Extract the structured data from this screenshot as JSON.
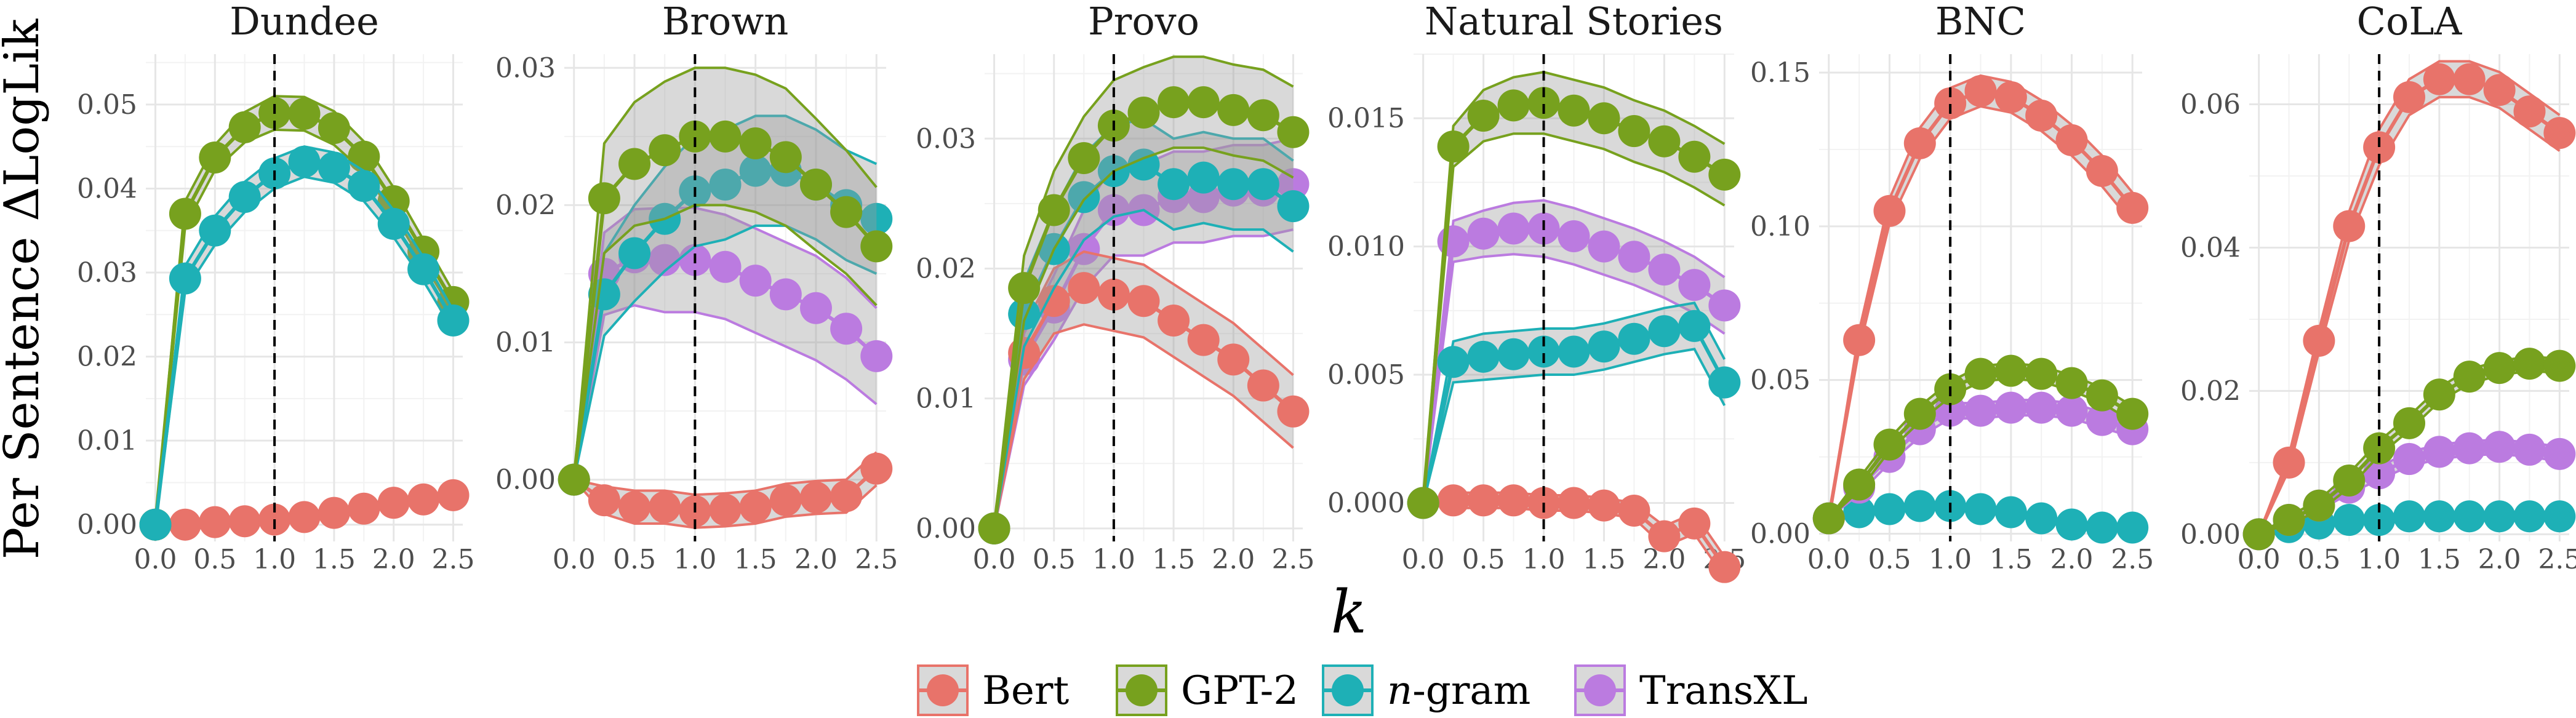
{
  "chart_data": {
    "type": "line",
    "ylabel": "Per Sentence ΔLogLik",
    "xlabel": "k",
    "x": [
      0.0,
      0.25,
      0.5,
      0.75,
      1.0,
      1.25,
      1.5,
      1.75,
      2.0,
      2.25,
      2.5
    ],
    "x_ticks": [
      0.0,
      0.5,
      1.0,
      1.5,
      2.0,
      2.5
    ],
    "x_tick_labels": [
      "0.0",
      "0.5",
      "1.0",
      "1.5",
      "2.0",
      "2.5"
    ],
    "vline_x": 1.0,
    "colors": {
      "Bert": "#E8736A",
      "GPT-2": "#77A11E",
      "n-gram": "#1EB0B6",
      "TransXL": "#BB7BE0"
    },
    "legend": [
      {
        "name": "Bert",
        "label_plain": "Bert",
        "label_suffix": "",
        "color": "#E8736A"
      },
      {
        "name": "GPT-2",
        "label_plain": "GPT-2",
        "label_suffix": "",
        "color": "#77A11E"
      },
      {
        "name": "n-gram",
        "label_plain": "",
        "label_italic": "n",
        "label_suffix": "-gram",
        "color": "#1EB0B6"
      },
      {
        "name": "TransXL",
        "label_plain": "TransXL",
        "label_suffix": "",
        "color": "#BB7BE0"
      }
    ],
    "panels": [
      {
        "title": "Dundee",
        "ylim": [
          -0.002,
          0.056
        ],
        "y_ticks": [
          0.0,
          0.01,
          0.02,
          0.03,
          0.04,
          0.05
        ],
        "y_tick_labels": [
          "0.00",
          "0.01",
          "0.02",
          "0.03",
          "0.04",
          "0.05"
        ],
        "series": [
          {
            "name": "Bert",
            "values": [
              0.0,
              0.0,
              0.0003,
              0.0004,
              0.0006,
              0.0009,
              0.0014,
              0.0019,
              0.0026,
              0.003,
              0.0035
            ],
            "band": [
              0.0004,
              0.0004,
              0.0004,
              0.0004,
              0.0004,
              0.0004,
              0.0004,
              0.0004,
              0.0004,
              0.0004,
              0.0004
            ],
            "markers": true
          },
          {
            "name": "GPT-2",
            "values": [
              0.0,
              0.037,
              0.0437,
              0.0473,
              0.049,
              0.0489,
              0.0472,
              0.0438,
              0.0385,
              0.0325,
              0.0265
            ],
            "band": [
              0.0,
              0.0015,
              0.0015,
              0.0018,
              0.002,
              0.002,
              0.002,
              0.0018,
              0.0016,
              0.0014,
              0.0012
            ],
            "markers": true
          },
          {
            "name": "n-gram",
            "values": [
              0.0,
              0.0293,
              0.035,
              0.039,
              0.0418,
              0.0432,
              0.0425,
              0.0403,
              0.0358,
              0.0304,
              0.0243
            ],
            "band": [
              0.0,
              0.0015,
              0.0017,
              0.0018,
              0.0018,
              0.0018,
              0.0018,
              0.0018,
              0.0016,
              0.0014,
              0.0012
            ],
            "markers": true
          }
        ]
      },
      {
        "title": "Brown",
        "ylim": [
          -0.0045,
          0.031
        ],
        "y_ticks": [
          0.0,
          0.01,
          0.02,
          0.03
        ],
        "y_tick_labels": [
          "0.00",
          "0.01",
          "0.02",
          "0.03"
        ],
        "series": [
          {
            "name": "TransXL",
            "values": [
              0.0,
              0.015,
              0.0162,
              0.016,
              0.016,
              0.0155,
              0.0145,
              0.0135,
              0.0125,
              0.011,
              0.009
            ],
            "band": [
              0.0,
              0.003,
              0.0035,
              0.0038,
              0.0038,
              0.0038,
              0.0038,
              0.0038,
              0.0038,
              0.0037,
              0.0035
            ],
            "markers": true
          },
          {
            "name": "Bert",
            "values": [
              0.0,
              -0.0015,
              -0.002,
              -0.002,
              -0.0023,
              -0.0022,
              -0.002,
              -0.0015,
              -0.0013,
              -0.0012,
              0.0008
            ],
            "band": [
              0.0,
              0.001,
              0.0012,
              0.0012,
              0.0012,
              0.0012,
              0.0012,
              0.0012,
              0.0012,
              0.0012,
              0.0012
            ],
            "markers": true
          },
          {
            "name": "n-gram",
            "values": [
              0.0,
              0.0135,
              0.0165,
              0.019,
              0.021,
              0.0215,
              0.0225,
              0.0225,
              0.0215,
              0.02,
              0.019
            ],
            "band": [
              0.0,
              0.003,
              0.0035,
              0.0038,
              0.004,
              0.004,
              0.004,
              0.004,
              0.004,
              0.004,
              0.004
            ],
            "markers": true
          },
          {
            "name": "GPT-2",
            "values": [
              0.0,
              0.0205,
              0.023,
              0.024,
              0.025,
              0.025,
              0.0245,
              0.0235,
              0.0215,
              0.0195,
              0.017
            ],
            "band": [
              0.0,
              0.004,
              0.0045,
              0.005,
              0.005,
              0.005,
              0.005,
              0.005,
              0.0048,
              0.0045,
              0.0043
            ],
            "markers": true
          }
        ]
      },
      {
        "title": "Provo",
        "ylim": [
          -0.001,
          0.0365
        ],
        "y_ticks": [
          0.0,
          0.01,
          0.02,
          0.03
        ],
        "y_tick_labels": [
          "0.00",
          "0.01",
          "0.02",
          "0.03"
        ],
        "series": [
          {
            "name": "TransXL",
            "values": [
              0.0,
              0.013,
              0.017,
              0.0215,
              0.0245,
              0.0245,
              0.0255,
              0.0255,
              0.026,
              0.026,
              0.0265
            ],
            "band": [
              0.0,
              0.002,
              0.0025,
              0.003,
              0.0035,
              0.0035,
              0.0035,
              0.0035,
              0.0035,
              0.0035,
              0.0035
            ],
            "markers": true
          },
          {
            "name": "Bert",
            "values": [
              0.0,
              0.0135,
              0.0175,
              0.0185,
              0.018,
              0.0175,
              0.016,
              0.0145,
              0.013,
              0.011,
              0.009
            ],
            "band": [
              0.0,
              0.002,
              0.0025,
              0.0028,
              0.0028,
              0.0028,
              0.0028,
              0.0028,
              0.0028,
              0.0028,
              0.0028
            ],
            "markers": true
          },
          {
            "name": "n-gram",
            "values": [
              0.0,
              0.0165,
              0.0215,
              0.0255,
              0.0275,
              0.028,
              0.0265,
              0.027,
              0.0265,
              0.0265,
              0.0248
            ],
            "band": [
              0.0,
              0.0025,
              0.003,
              0.0033,
              0.0035,
              0.0035,
              0.0035,
              0.0035,
              0.0035,
              0.0035,
              0.0035
            ],
            "markers": true
          },
          {
            "name": "GPT-2",
            "values": [
              0.0,
              0.0185,
              0.0245,
              0.0285,
              0.031,
              0.032,
              0.0328,
              0.0328,
              0.0322,
              0.0318,
              0.0305
            ],
            "band": [
              0.0,
              0.0025,
              0.003,
              0.0032,
              0.0035,
              0.0035,
              0.0035,
              0.0035,
              0.0035,
              0.0035,
              0.0035
            ],
            "markers": true
          }
        ]
      },
      {
        "title": "Natural Stories",
        "ylim": [
          -0.0015,
          0.0175
        ],
        "y_ticks": [
          0.0,
          0.005,
          0.01,
          0.015
        ],
        "y_tick_labels": [
          "0.000",
          "0.005",
          "0.010",
          "0.015"
        ],
        "series": [
          {
            "name": "Bert",
            "values": [
              0.0,
              0.0001,
              0.0001,
              0.0001,
              0.0,
              0.0,
              -0.0001,
              -0.0003,
              -0.0013,
              -0.0008,
              -0.0025
            ],
            "band": [
              0.0,
              0.0003,
              0.0003,
              0.0003,
              0.0003,
              0.0003,
              0.0003,
              0.0003,
              0.0004,
              0.0004,
              0.0004
            ],
            "markers": true
          },
          {
            "name": "TransXL",
            "values": [
              0.0,
              0.0102,
              0.0105,
              0.0107,
              0.0107,
              0.0104,
              0.01,
              0.0096,
              0.0091,
              0.0085,
              0.0077
            ],
            "band": [
              0.0,
              0.0008,
              0.0009,
              0.001,
              0.0011,
              0.0011,
              0.0011,
              0.0011,
              0.0011,
              0.0011,
              0.0011
            ],
            "markers": true
          },
          {
            "name": "n-gram",
            "values": [
              0.0,
              0.0055,
              0.0057,
              0.0058,
              0.0059,
              0.0059,
              0.0061,
              0.0064,
              0.0067,
              0.0069,
              0.0047
            ],
            "band": [
              0.0,
              0.0008,
              0.0009,
              0.0009,
              0.0009,
              0.0009,
              0.0009,
              0.0009,
              0.0009,
              0.0009,
              0.0009
            ],
            "markers": true
          },
          {
            "name": "GPT-2",
            "values": [
              0.0,
              0.0139,
              0.0151,
              0.0155,
              0.0156,
              0.0153,
              0.015,
              0.0145,
              0.0141,
              0.0135,
              0.0128
            ],
            "band": [
              0.0,
              0.0008,
              0.001,
              0.0011,
              0.0012,
              0.0012,
              0.0012,
              0.0012,
              0.0012,
              0.0012,
              0.0012
            ],
            "markers": true
          }
        ]
      },
      {
        "title": "BNC",
        "ylim": [
          -0.0025,
          0.156
        ],
        "y_ticks": [
          0.0,
          0.05,
          0.1,
          0.15
        ],
        "y_tick_labels": [
          "0.00",
          "0.05",
          "0.10",
          "0.15"
        ],
        "series": [
          {
            "name": "Bert",
            "values": [
              0.005,
              0.063,
              0.105,
              0.127,
              0.14,
              0.144,
              0.142,
              0.136,
              0.128,
              0.118,
              0.106
            ],
            "band": [
              0.0,
              0.003,
              0.004,
              0.005,
              0.005,
              0.005,
              0.005,
              0.005,
              0.005,
              0.005,
              0.005
            ],
            "markers": true
          },
          {
            "name": "n-gram",
            "values": [
              0.005,
              0.007,
              0.008,
              0.009,
              0.009,
              0.008,
              0.007,
              0.005,
              0.003,
              0.002,
              0.002
            ],
            "band": [
              0.0,
              0.001,
              0.001,
              0.001,
              0.001,
              0.001,
              0.001,
              0.001,
              0.001,
              0.001,
              0.001
            ],
            "markers": true
          },
          {
            "name": "TransXL",
            "values": [
              0.005,
              0.015,
              0.025,
              0.034,
              0.04,
              0.04,
              0.041,
              0.041,
              0.04,
              0.037,
              0.034
            ],
            "band": [
              0.0,
              0.002,
              0.002,
              0.0025,
              0.0025,
              0.0025,
              0.0025,
              0.0025,
              0.0025,
              0.0025,
              0.0025
            ],
            "markers": true
          },
          {
            "name": "GPT-2",
            "values": [
              0.005,
              0.016,
              0.029,
              0.039,
              0.047,
              0.052,
              0.053,
              0.052,
              0.049,
              0.045,
              0.039
            ],
            "band": [
              0.0,
              0.002,
              0.002,
              0.0025,
              0.0025,
              0.0025,
              0.0025,
              0.0025,
              0.0025,
              0.0025,
              0.0025
            ],
            "markers": true
          }
        ]
      },
      {
        "title": "CoLA",
        "ylim": [
          -0.001,
          0.067
        ],
        "y_ticks": [
          0.0,
          0.02,
          0.04,
          0.06
        ],
        "y_tick_labels": [
          "0.00",
          "0.02",
          "0.04",
          "0.06"
        ],
        "series": [
          {
            "name": "Bert",
            "values": [
              0.0,
              0.01,
              0.027,
              0.043,
              0.054,
              0.061,
              0.0635,
              0.0635,
              0.062,
              0.059,
              0.056
            ],
            "band": [
              0.0,
              0.001,
              0.0015,
              0.002,
              0.0025,
              0.0025,
              0.0025,
              0.0025,
              0.0025,
              0.0025,
              0.0025
            ],
            "markers": true
          },
          {
            "name": "n-gram",
            "values": [
              0.0,
              0.001,
              0.0015,
              0.002,
              0.002,
              0.0025,
              0.0025,
              0.0025,
              0.0025,
              0.0025,
              0.0025
            ],
            "band": [
              0.0,
              0.0005,
              0.0005,
              0.0005,
              0.0005,
              0.0005,
              0.0005,
              0.0005,
              0.0005,
              0.0005,
              0.0005
            ],
            "markers": true
          },
          {
            "name": "TransXL",
            "values": [
              0.0,
              0.002,
              0.004,
              0.0065,
              0.0085,
              0.0105,
              0.0115,
              0.012,
              0.0122,
              0.0118,
              0.0112
            ],
            "band": [
              0.0,
              0.0005,
              0.0007,
              0.0008,
              0.0009,
              0.001,
              0.001,
              0.001,
              0.001,
              0.001,
              0.001
            ],
            "markers": true
          },
          {
            "name": "GPT-2",
            "values": [
              0.0,
              0.002,
              0.004,
              0.0075,
              0.012,
              0.0155,
              0.0195,
              0.022,
              0.0232,
              0.0238,
              0.0235
            ],
            "band": [
              0.0,
              0.0005,
              0.0008,
              0.001,
              0.001,
              0.001,
              0.001,
              0.001,
              0.001,
              0.001,
              0.001
            ],
            "markers": true
          }
        ]
      }
    ]
  }
}
